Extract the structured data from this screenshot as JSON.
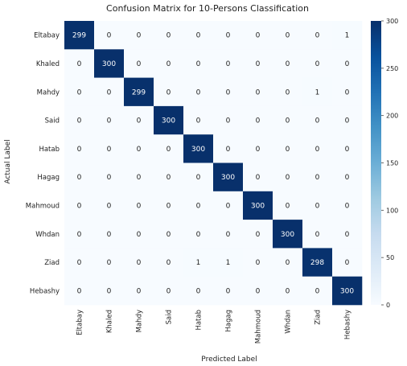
{
  "chart_data": {
    "type": "heatmap",
    "title": "Confusion Matrix for 10-Persons Classification",
    "xlabel": "Predicted Label",
    "ylabel": "Actual Label",
    "row_labels": [
      "Eltabay",
      "Khaled",
      "Mahdy",
      "Said",
      "Hatab",
      "Hagag",
      "Mahmoud",
      "Whdan",
      "Ziad",
      "Hebashy"
    ],
    "col_labels": [
      "Eltabay",
      "Khaled",
      "Mahdy",
      "Said",
      "Hatab",
      "Hagag",
      "Mahmoud",
      "Whdan",
      "Ziad",
      "Hebashy"
    ],
    "values": [
      [
        299,
        0,
        0,
        0,
        0,
        0,
        0,
        0,
        0,
        1
      ],
      [
        0,
        300,
        0,
        0,
        0,
        0,
        0,
        0,
        0,
        0
      ],
      [
        0,
        0,
        299,
        0,
        0,
        0,
        0,
        0,
        1,
        0
      ],
      [
        0,
        0,
        0,
        300,
        0,
        0,
        0,
        0,
        0,
        0
      ],
      [
        0,
        0,
        0,
        0,
        300,
        0,
        0,
        0,
        0,
        0
      ],
      [
        0,
        0,
        0,
        0,
        0,
        300,
        0,
        0,
        0,
        0
      ],
      [
        0,
        0,
        0,
        0,
        0,
        0,
        300,
        0,
        0,
        0
      ],
      [
        0,
        0,
        0,
        0,
        0,
        0,
        0,
        300,
        0,
        0
      ],
      [
        0,
        0,
        0,
        0,
        1,
        1,
        0,
        0,
        298,
        0
      ],
      [
        0,
        0,
        0,
        0,
        0,
        0,
        0,
        0,
        0,
        300
      ]
    ],
    "colorbar": {
      "range": [
        0,
        300
      ],
      "ticks": [
        0,
        50,
        100,
        150,
        200,
        250,
        300
      ],
      "colors": [
        "#f7fbff",
        "#08306b"
      ]
    },
    "colormap": "Blues",
    "grid": false
  }
}
